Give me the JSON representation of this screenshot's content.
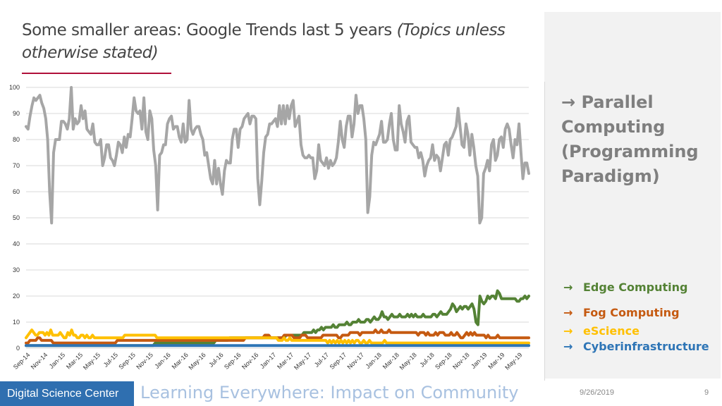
{
  "slide": {
    "title_main": "Some smaller areas: Google Trends last 5 years ",
    "title_sub": "(Topics unless otherwise stated)",
    "main_label_arrow": "→",
    "main_label": "Parallel Computing (Programming Paradigm)",
    "footer_org": "Digital Science Center",
    "footer_title": "Learning Everywhere: Impact on Community",
    "date": "9/26/2019",
    "page": "9"
  },
  "legend": [
    {
      "arrow": "→",
      "label": "Edge Computing",
      "color": "#548235"
    },
    {
      "arrow": "→",
      "label": "Fog Computing",
      "color": "#c55a11"
    },
    {
      "arrow": "→",
      "label": "eScience",
      "color": "#ffc000"
    },
    {
      "arrow": "→",
      "label": "Cyberinfrastructure",
      "color": "#2e75b6"
    }
  ],
  "chart_data": {
    "type": "line",
    "ylim": [
      0,
      100
    ],
    "y_ticks": [
      0,
      10,
      20,
      30,
      40,
      50,
      60,
      70,
      80,
      90,
      100
    ],
    "x_tick_labels": [
      "Sep-14",
      "Nov-14",
      "Jan-15",
      "Mar-15",
      "May-15",
      "Jul-15",
      "Sep-15",
      "Nov-15",
      "Jan-16",
      "Mar-16",
      "May-16",
      "Jul-16",
      "Sep-16",
      "Nov-16",
      "Jan-17",
      "Mar-17",
      "May-17",
      "Jul-17",
      "Sep-17",
      "Nov-17",
      "Jan-18",
      "Mar-18",
      "May-18",
      "Jul-18",
      "Sep-18",
      "Nov-18",
      "Jan-19",
      "Mar-19",
      "May-19"
    ],
    "grid": true,
    "series": [
      {
        "name": "Parallel Computing",
        "color": "#a6a6a6",
        "values": [
          85,
          84,
          89,
          93,
          96,
          95,
          96,
          97,
          94,
          92,
          88,
          80,
          60,
          48,
          75,
          80,
          80,
          80,
          87,
          87,
          86,
          84,
          88,
          100,
          84,
          88,
          86,
          87,
          93,
          88,
          91,
          84,
          83,
          82,
          86,
          79,
          78,
          78,
          80,
          70,
          73,
          78,
          78,
          73,
          72,
          70,
          74,
          79,
          78,
          75,
          81,
          77,
          82,
          81,
          88,
          96,
          91,
          90,
          91,
          84,
          96,
          83,
          80,
          91,
          88,
          76,
          70,
          53,
          74,
          75,
          78,
          78,
          86,
          88,
          89,
          84,
          85,
          85,
          81,
          79,
          86,
          79,
          80,
          95,
          84,
          82,
          84,
          85,
          85,
          82,
          80,
          74,
          75,
          70,
          65,
          63,
          72,
          63,
          69,
          63,
          59,
          68,
          72,
          71,
          71,
          80,
          84,
          84,
          77,
          84,
          85,
          88,
          89,
          90,
          86,
          89,
          89,
          88,
          65,
          55,
          64,
          75,
          81,
          82,
          86,
          86,
          87,
          88,
          85,
          93,
          86,
          93,
          86,
          93,
          88,
          93,
          95,
          85,
          87,
          89,
          78,
          74,
          73,
          73,
          74,
          73,
          73,
          65,
          68,
          78,
          72,
          71,
          70,
          73,
          69,
          72,
          70,
          71,
          73,
          79,
          87,
          80,
          77,
          85,
          89,
          89,
          81,
          86,
          97,
          90,
          93,
          93,
          88,
          80,
          52,
          58,
          74,
          79,
          78,
          80,
          82,
          87,
          79,
          79,
          80,
          86,
          90,
          80,
          76,
          76,
          93,
          86,
          83,
          79,
          87,
          89,
          79,
          78,
          77,
          77,
          73,
          75,
          72,
          66,
          70,
          72,
          73,
          78,
          72,
          74,
          73,
          68,
          73,
          78,
          79,
          74,
          80,
          81,
          83,
          85,
          92,
          85,
          78,
          77,
          86,
          82,
          74,
          82,
          77,
          70,
          66,
          48,
          50,
          67,
          69,
          72,
          68,
          78,
          80,
          72,
          74,
          80,
          81,
          77,
          84,
          86,
          84,
          78,
          73,
          80,
          78,
          86,
          75,
          65,
          71,
          71,
          67
        ]
      },
      {
        "name": "Edge Computing",
        "color": "#548235",
        "values": [
          1,
          1,
          1,
          1,
          1,
          1,
          1,
          1,
          1,
          1,
          1,
          1,
          1,
          1,
          1,
          1,
          1,
          1,
          1,
          1,
          1,
          1,
          1,
          1,
          1,
          1,
          1,
          1,
          1,
          1,
          1,
          1,
          1,
          1,
          1,
          1,
          1,
          1,
          1,
          1,
          1,
          1,
          1,
          1,
          1,
          1,
          1,
          1,
          1,
          1,
          1,
          1,
          1,
          1,
          1,
          1,
          1,
          1,
          1,
          1,
          1,
          1,
          1,
          1,
          1,
          1,
          2,
          2,
          2,
          2,
          2,
          2,
          2,
          2,
          2,
          2,
          2,
          2,
          2,
          2,
          2,
          2,
          2,
          2,
          2,
          2,
          2,
          2,
          2,
          2,
          2,
          2,
          2,
          2,
          2,
          2,
          2,
          3,
          3,
          3,
          3,
          3,
          3,
          3,
          4,
          4,
          4,
          4,
          4,
          4,
          4,
          4,
          4,
          4,
          4,
          4,
          4,
          4,
          4,
          4,
          4,
          4,
          4,
          4,
          4,
          4,
          4,
          4,
          4,
          4,
          4,
          4,
          4,
          5,
          5,
          5,
          5,
          5,
          5,
          5,
          5,
          5,
          6,
          6,
          6,
          6,
          6,
          7,
          6,
          7,
          7,
          8,
          7,
          8,
          8,
          8,
          8,
          9,
          8,
          8,
          9,
          9,
          9,
          9,
          10,
          9,
          9,
          10,
          10,
          10,
          11,
          10,
          10,
          10,
          11,
          11,
          10,
          11,
          12,
          11,
          11,
          12,
          14,
          12,
          12,
          11,
          12,
          13,
          12,
          12,
          12,
          13,
          12,
          12,
          12,
          13,
          12,
          13,
          12,
          13,
          12,
          12,
          12,
          13,
          12,
          12,
          12,
          12,
          13,
          13,
          12,
          13,
          14,
          13,
          13,
          13,
          14,
          15,
          17,
          16,
          14,
          15,
          16,
          15,
          16,
          16,
          15,
          16,
          17,
          15,
          10,
          9,
          20,
          18,
          17,
          18,
          20,
          19,
          20,
          20,
          19,
          22,
          21,
          19,
          19,
          19,
          19,
          19,
          19,
          19,
          19,
          18,
          18,
          19,
          19,
          20,
          19,
          20
        ]
      },
      {
        "name": "Fog Computing",
        "color": "#c55a11",
        "values": [
          2,
          2,
          3,
          3,
          3,
          3,
          4,
          4,
          3,
          3,
          3,
          3,
          3,
          3,
          2,
          2,
          2,
          2,
          2,
          2,
          2,
          2,
          2,
          2,
          2,
          2,
          2,
          2,
          2,
          2,
          2,
          2,
          2,
          2,
          2,
          2,
          2,
          2,
          2,
          2,
          2,
          2,
          2,
          2,
          2,
          2,
          2,
          3,
          3,
          3,
          3,
          3,
          3,
          3,
          3,
          3,
          3,
          3,
          3,
          3,
          3,
          3,
          3,
          3,
          3,
          3,
          3,
          3,
          3,
          3,
          3,
          3,
          3,
          3,
          3,
          3,
          3,
          3,
          3,
          3,
          3,
          3,
          3,
          3,
          3,
          3,
          3,
          3,
          3,
          3,
          3,
          3,
          3,
          3,
          3,
          3,
          3,
          3,
          3,
          3,
          3,
          3,
          3,
          3,
          3,
          3,
          3,
          3,
          3,
          3,
          3,
          3,
          3,
          4,
          4,
          4,
          4,
          4,
          4,
          4,
          4,
          4,
          4,
          5,
          5,
          5,
          4,
          4,
          4,
          4,
          4,
          4,
          4,
          5,
          5,
          5,
          5,
          5,
          4,
          4,
          4,
          4,
          5,
          5,
          5,
          4,
          4,
          4,
          4,
          4,
          4,
          4,
          4,
          5,
          5,
          5,
          5,
          5,
          5,
          5,
          5,
          4,
          4,
          5,
          5,
          5,
          5,
          6,
          6,
          6,
          6,
          6,
          5,
          6,
          6,
          6,
          6,
          6,
          6,
          6,
          7,
          6,
          6,
          7,
          6,
          6,
          6,
          7,
          6,
          6,
          6,
          6,
          6,
          6,
          6,
          6,
          6,
          6,
          6,
          6,
          6,
          6,
          5,
          6,
          6,
          6,
          5,
          6,
          5,
          5,
          5,
          6,
          5,
          6,
          6,
          6,
          5,
          5,
          5,
          6,
          5,
          5,
          6,
          5,
          4,
          4,
          5,
          6,
          5,
          6,
          5,
          6,
          5,
          5,
          5,
          5,
          5,
          4,
          5,
          4,
          4,
          4,
          4,
          5,
          4,
          4,
          4,
          4,
          4,
          4,
          4,
          4,
          4,
          4,
          4,
          4,
          4,
          4,
          4,
          4
        ]
      },
      {
        "name": "eScience",
        "color": "#ffc000",
        "values": [
          4,
          5,
          6,
          7,
          6,
          5,
          5,
          6,
          6,
          6,
          5,
          6,
          5,
          7,
          5,
          5,
          5,
          5,
          6,
          5,
          4,
          4,
          6,
          5,
          7,
          5,
          5,
          4,
          4,
          5,
          5,
          4,
          5,
          4,
          4,
          5,
          4,
          4,
          4,
          4,
          4,
          4,
          4,
          4,
          4,
          4,
          4,
          4,
          4,
          4,
          4,
          4,
          5,
          5,
          5,
          5,
          5,
          5,
          5,
          5,
          5,
          5,
          5,
          5,
          5,
          5,
          5,
          5,
          5,
          4,
          4,
          4,
          4,
          4,
          4,
          4,
          4,
          4,
          4,
          4,
          4,
          4,
          4,
          4,
          4,
          4,
          4,
          4,
          4,
          4,
          4,
          4,
          4,
          4,
          4,
          4,
          4,
          4,
          4,
          4,
          4,
          4,
          4,
          4,
          4,
          4,
          4,
          4,
          4,
          4,
          4,
          4,
          4,
          4,
          4,
          4,
          4,
          4,
          4,
          4,
          4,
          4,
          4,
          4,
          4,
          4,
          4,
          4,
          4,
          4,
          4,
          4,
          4,
          3,
          3,
          3,
          4,
          3,
          3,
          4,
          3,
          3,
          3,
          3,
          3,
          3,
          3,
          3,
          3,
          3,
          3,
          3,
          3,
          3,
          3,
          3,
          3,
          3,
          3,
          2,
          3,
          2,
          3,
          2,
          3,
          2,
          3,
          2,
          3,
          2,
          3,
          2,
          3,
          2,
          3,
          3,
          2,
          2,
          3,
          2,
          2,
          3,
          2,
          2,
          2,
          2,
          2,
          2,
          2,
          3,
          2,
          2,
          2,
          2,
          2,
          2,
          2,
          2,
          2,
          2,
          2,
          2,
          2,
          2,
          2,
          2,
          2,
          2,
          2,
          2,
          2,
          2,
          2,
          2,
          2,
          2,
          2,
          2,
          2,
          2,
          2,
          2,
          2,
          2,
          2,
          2,
          2,
          2,
          2,
          2,
          2,
          2,
          2,
          2,
          2,
          2,
          2,
          2,
          2,
          2,
          2,
          2,
          2,
          2,
          2,
          2,
          2,
          2,
          2,
          2,
          2,
          2,
          2,
          2,
          2,
          2,
          2,
          2,
          2,
          2,
          2,
          2,
          2,
          2,
          2,
          2
        ]
      },
      {
        "name": "Cyberinfrastructure",
        "color": "#2e75b6",
        "values": [
          1,
          1,
          1,
          1,
          1,
          1,
          1,
          1,
          1,
          1,
          1,
          1,
          1,
          1,
          1,
          1,
          1,
          1,
          1,
          1,
          1,
          1,
          1,
          1,
          1,
          1,
          1,
          1,
          1,
          1,
          1,
          1,
          1,
          1,
          1,
          1,
          1,
          1,
          1,
          1,
          1,
          1,
          1,
          1,
          1,
          1,
          1,
          1,
          1,
          1,
          1,
          1,
          1,
          1,
          1,
          1,
          1,
          1,
          1,
          1,
          1,
          1,
          1,
          1,
          1,
          1,
          1,
          1,
          1,
          1,
          1,
          1,
          1,
          1,
          1,
          1,
          1,
          1,
          1,
          1,
          1,
          1,
          1,
          1,
          1,
          1,
          1,
          1,
          1,
          1,
          1,
          1,
          1,
          1,
          1,
          1,
          1,
          1,
          1,
          1,
          1,
          1,
          1,
          1,
          1,
          1,
          1,
          1,
          1,
          1,
          1,
          1,
          1,
          1,
          1,
          1,
          1,
          1,
          1,
          1,
          1,
          1,
          1,
          1,
          1,
          1,
          1,
          1,
          1,
          1,
          1,
          1,
          1,
          1,
          1,
          1,
          1,
          1,
          1,
          1,
          1,
          1,
          1,
          1,
          1,
          1,
          1,
          1,
          1,
          1,
          1,
          1,
          1,
          1,
          1,
          1,
          1,
          1,
          1,
          1,
          1,
          1,
          1,
          1,
          1,
          1,
          1,
          1,
          1,
          1,
          1,
          1,
          1,
          1,
          1,
          1,
          1,
          1,
          1,
          1,
          1,
          1,
          1,
          1,
          1,
          1,
          1,
          1,
          1,
          1,
          1,
          1,
          1,
          1,
          1,
          1,
          1,
          1,
          1,
          1,
          1,
          1,
          1,
          1,
          1,
          1,
          1,
          1,
          1,
          1,
          1,
          1,
          1,
          1,
          1,
          1,
          1,
          1,
          1,
          1,
          1,
          1,
          1,
          1,
          1,
          1,
          1,
          1,
          1,
          1,
          1,
          1,
          1,
          1,
          1,
          1,
          1,
          1,
          1,
          1,
          1,
          1,
          1,
          1,
          1,
          1,
          1,
          1,
          1,
          1,
          1,
          1,
          1,
          1,
          1,
          1,
          1,
          1
        ]
      }
    ]
  }
}
